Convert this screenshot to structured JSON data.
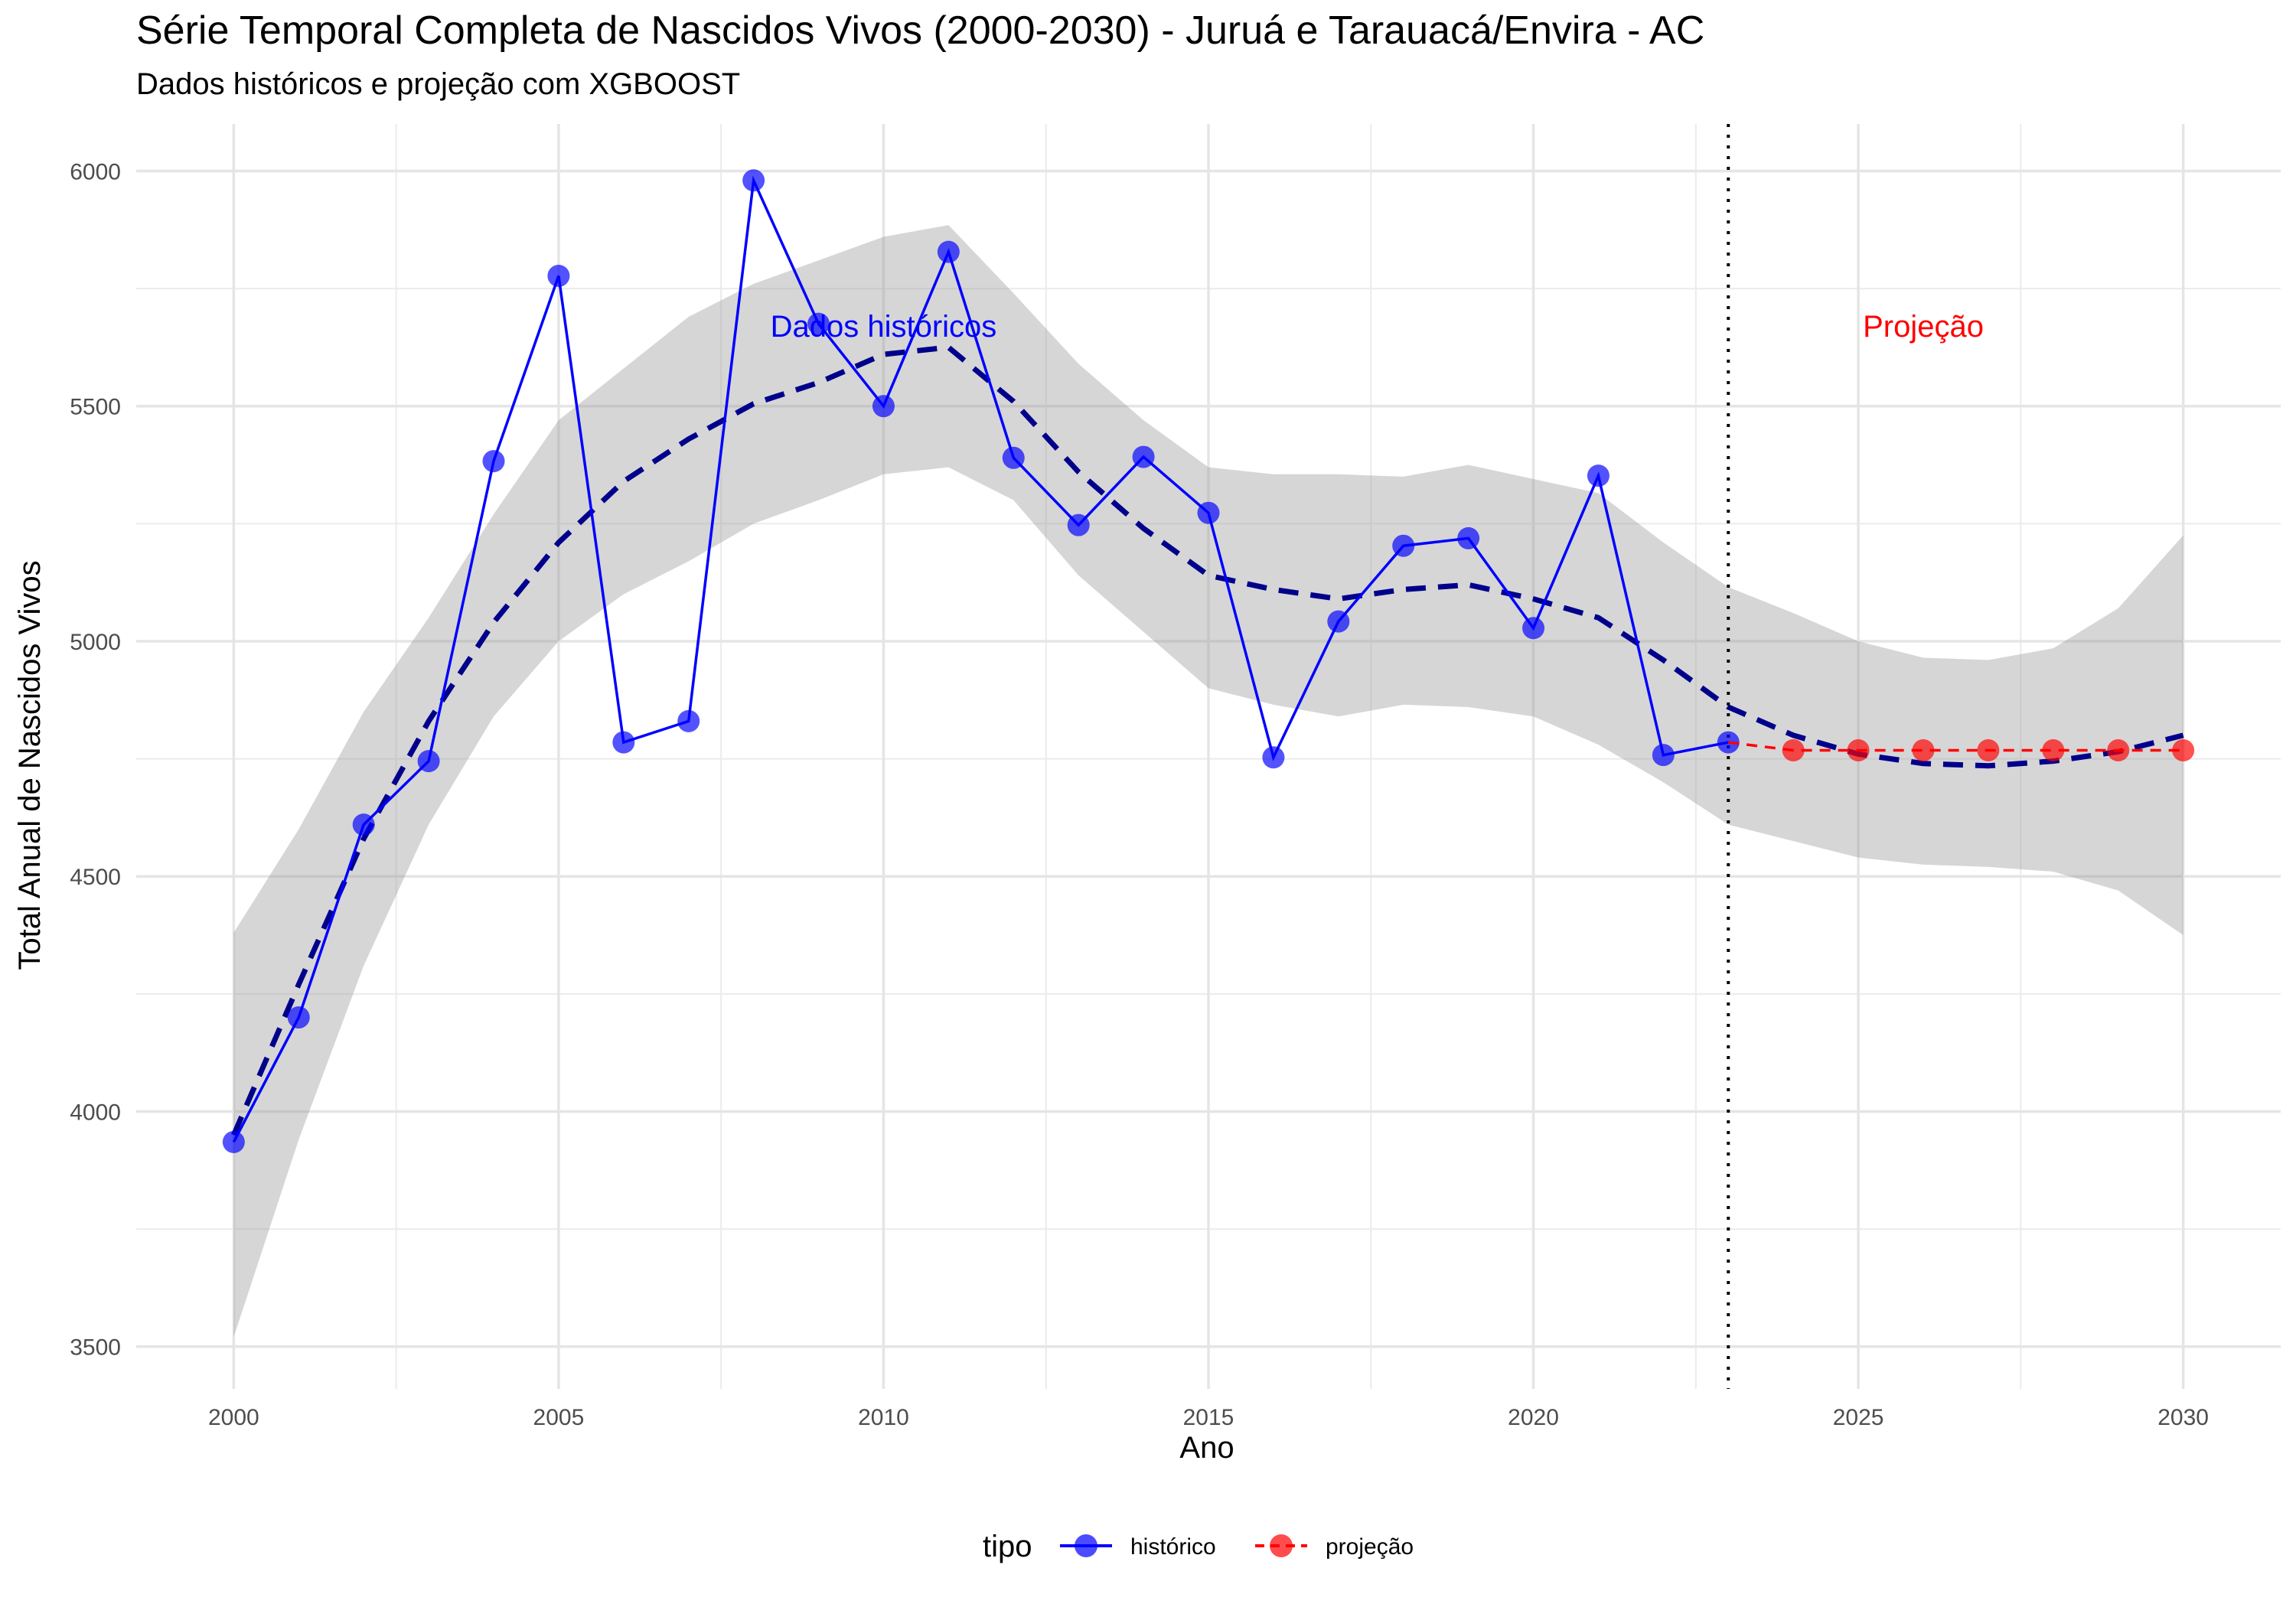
{
  "chart_data": {
    "type": "line",
    "title": "Série Temporal Completa de Nascidos Vivos (2000-2030) -  Juruá e Tarauacá/Envira - AC",
    "subtitle": "Dados históricos e projeção com XGBOOST",
    "xlabel": "Ano",
    "ylabel": "Total Anual de Nascidos Vivos",
    "xlim": [
      1998.5,
      2031.5
    ],
    "ylim": [
      3410,
      6100
    ],
    "x_ticks": [
      2000,
      2005,
      2010,
      2015,
      2020,
      2025,
      2030
    ],
    "x_tick_labels": [
      "2000",
      "2005",
      "2010",
      "2015",
      "2020",
      "2025",
      "2030"
    ],
    "y_ticks": [
      3500,
      4000,
      4500,
      5000,
      5500,
      6000
    ],
    "y_tick_labels": [
      "3500",
      "4000",
      "4500",
      "5000",
      "5500",
      "6000"
    ],
    "grid": true,
    "legend": {
      "title": "tipo",
      "position": "bottom",
      "entries": [
        "histórico",
        "projeção"
      ]
    },
    "annotations": [
      {
        "text": "Dados históricos",
        "x": 2010,
        "y": 5670,
        "color": "#0000ff"
      },
      {
        "text": "Projeção",
        "x": 2026,
        "y": 5670,
        "color": "#ff0000"
      }
    ],
    "vline": {
      "x": 2023,
      "style": "dotted"
    },
    "series": [
      {
        "name": "histórico",
        "color": "#0000ff",
        "x": [
          2000,
          2001,
          2002,
          2003,
          2004,
          2005,
          2006,
          2007,
          2008,
          2009,
          2010,
          2011,
          2012,
          2013,
          2014,
          2015,
          2016,
          2017,
          2018,
          2019,
          2020,
          2021,
          2022,
          2023
        ],
        "y": [
          3935,
          4200,
          4610,
          4745,
          5383,
          5777,
          4785,
          4830,
          5980,
          5675,
          5500,
          5828,
          5390,
          5247,
          5392,
          5273,
          4753,
          5042,
          5203,
          5219,
          5028,
          5352,
          4758,
          4785
        ]
      },
      {
        "name": "projeção",
        "color": "#ff0000",
        "x": [
          2023,
          2024,
          2025,
          2026,
          2027,
          2028,
          2029,
          2030
        ],
        "y": [
          4785,
          4768,
          4768,
          4768,
          4768,
          4768,
          4768,
          4768
        ]
      }
    ],
    "smooth": {
      "color": "#00008b",
      "x": [
        2000,
        2001,
        2002,
        2003,
        2004,
        2005,
        2006,
        2007,
        2008,
        2009,
        2010,
        2011,
        2012,
        2013,
        2014,
        2015,
        2016,
        2017,
        2018,
        2019,
        2020,
        2021,
        2022,
        2023,
        2024,
        2025,
        2026,
        2027,
        2028,
        2029,
        2030
      ],
      "y": [
        3950,
        4270,
        4580,
        4830,
        5040,
        5210,
        5340,
        5430,
        5505,
        5550,
        5610,
        5625,
        5510,
        5360,
        5240,
        5140,
        5110,
        5090,
        5110,
        5120,
        5090,
        5050,
        4960,
        4860,
        4800,
        4760,
        4740,
        4735,
        4745,
        4765,
        4800
      ],
      "lower": [
        3520,
        3940,
        4310,
        4610,
        4840,
        5000,
        5100,
        5170,
        5250,
        5300,
        5355,
        5370,
        5300,
        5140,
        5020,
        4900,
        4865,
        4840,
        4865,
        4860,
        4840,
        4780,
        4700,
        4610,
        4575,
        4540,
        4525,
        4520,
        4510,
        4470,
        4375
      ],
      "upper": [
        4380,
        4600,
        4850,
        5050,
        5270,
        5470,
        5580,
        5690,
        5760,
        5810,
        5860,
        5885,
        5740,
        5590,
        5470,
        5370,
        5355,
        5355,
        5350,
        5375,
        5345,
        5315,
        5210,
        5115,
        5060,
        5000,
        4965,
        4960,
        4985,
        5070,
        5225
      ]
    }
  }
}
